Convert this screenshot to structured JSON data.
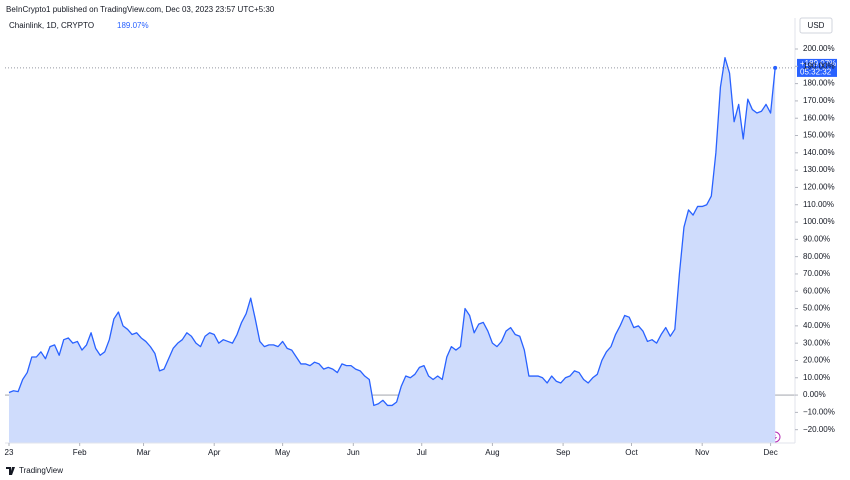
{
  "page_header": "BeInCrypto1 published on TradingView.com, Dec 03, 2023 23:57 UTC+5:30",
  "footer": "TradingView",
  "chart_data": {
    "type": "area",
    "title": "Chainlink, 1D, CRYPTO",
    "header_value": "189.07%",
    "currency": "USD",
    "price_tag": "+189.07%",
    "countdown": "05:32:32",
    "x": [
      0,
      2,
      4,
      6,
      8,
      10,
      12,
      14,
      16,
      18,
      20,
      22,
      24,
      26,
      28,
      30,
      32,
      34,
      36,
      38,
      40,
      42,
      44,
      46,
      48,
      50,
      52,
      54,
      56,
      58,
      60,
      62,
      64,
      66,
      68,
      70,
      72,
      74,
      76,
      78,
      80,
      82,
      84,
      86,
      88,
      90,
      92,
      94,
      96,
      98,
      100,
      102,
      104,
      106,
      108,
      110,
      112,
      114,
      116,
      118,
      120,
      122,
      124,
      126,
      128,
      130,
      132,
      134,
      136,
      138,
      140,
      142,
      144,
      146,
      148,
      150,
      152,
      154,
      156,
      158,
      160,
      162,
      164,
      166,
      168,
      170,
      172,
      174,
      176,
      178,
      180,
      182,
      184,
      186,
      188,
      190,
      192,
      194,
      196,
      198,
      200,
      202,
      204,
      206,
      208,
      210,
      212,
      214,
      216,
      218,
      220,
      222,
      224,
      226,
      228,
      230,
      232,
      234,
      236,
      238,
      240,
      242,
      244,
      246,
      248,
      250,
      252,
      254,
      256,
      258,
      260,
      262,
      264,
      266,
      268,
      270,
      272,
      274,
      276,
      278,
      280,
      282,
      284,
      286,
      288,
      290,
      292,
      294,
      296,
      298,
      300,
      302,
      304,
      306,
      308,
      310,
      312,
      314,
      316,
      318,
      320,
      322,
      324,
      326,
      328,
      330,
      332,
      334,
      336
    ],
    "series": [
      {
        "name": "Chainlink",
        "color": "#2962ff",
        "fill": "#cfdcfc",
        "values": [
          1.5,
          2.5,
          2,
          9,
          13,
          22,
          22,
          25,
          21,
          28,
          29,
          23,
          32,
          33,
          30,
          31,
          26,
          29,
          36,
          27,
          23,
          25,
          32,
          44,
          48,
          40,
          38,
          35,
          36,
          33,
          31,
          28,
          24,
          14,
          15,
          21,
          27,
          30,
          32,
          36,
          34,
          30,
          28,
          34,
          36,
          35,
          30,
          32,
          31,
          30,
          35,
          42,
          47,
          56,
          44,
          31,
          28,
          29,
          29,
          28,
          31,
          27,
          26,
          22,
          18,
          18,
          17,
          19,
          18,
          15,
          16,
          15,
          13,
          18,
          17,
          17,
          15,
          14,
          11,
          9,
          -6,
          -5,
          -3,
          -6,
          -6,
          -4,
          5,
          11,
          10,
          12,
          16,
          17,
          11,
          9,
          11,
          9,
          22,
          28,
          26,
          28,
          50,
          46,
          36,
          41,
          42,
          37,
          30,
          28,
          31,
          37,
          39,
          35,
          34,
          26,
          11,
          11,
          11,
          10,
          7,
          11,
          8,
          7,
          10,
          11,
          14,
          13,
          9,
          7,
          10,
          12,
          20,
          25,
          28,
          35,
          40,
          46,
          45,
          39,
          40,
          37,
          31,
          32,
          30,
          35,
          39,
          34,
          38,
          70,
          97,
          107,
          104,
          109,
          109,
          110,
          115,
          140,
          178,
          195,
          186,
          158,
          168,
          148,
          171,
          165,
          163,
          164,
          168,
          163,
          189.07
        ]
      }
    ],
    "xlim": [
      -1.75,
      344.7
    ],
    "ylim": [
      -27.7,
      205.2
    ],
    "xticks": [
      {
        "value": 0,
        "label": "23"
      },
      {
        "value": 31,
        "label": "Feb"
      },
      {
        "value": 59,
        "label": "Mar"
      },
      {
        "value": 90,
        "label": "Apr"
      },
      {
        "value": 120,
        "label": "May"
      },
      {
        "value": 151,
        "label": "Jun"
      },
      {
        "value": 181,
        "label": "Jul"
      },
      {
        "value": 212,
        "label": "Aug"
      },
      {
        "value": 243,
        "label": "Sep"
      },
      {
        "value": 273,
        "label": "Oct"
      },
      {
        "value": 304,
        "label": "Nov"
      },
      {
        "value": 334,
        "label": "Dec"
      }
    ],
    "yticks": [
      {
        "value": 200,
        "label": "200.00%"
      },
      {
        "value": 190,
        "label": "190.00%"
      },
      {
        "value": 180,
        "label": "180.00%"
      },
      {
        "value": 170,
        "label": "170.00%"
      },
      {
        "value": 160,
        "label": "160.00%"
      },
      {
        "value": 150,
        "label": "150.00%"
      },
      {
        "value": 140,
        "label": "140.00%"
      },
      {
        "value": 130,
        "label": "130.00%"
      },
      {
        "value": 120,
        "label": "120.00%"
      },
      {
        "value": 110,
        "label": "110.00%"
      },
      {
        "value": 100,
        "label": "100.00%"
      },
      {
        "value": 90,
        "label": "90.00%"
      },
      {
        "value": 80,
        "label": "80.00%"
      },
      {
        "value": 70,
        "label": "70.00%"
      },
      {
        "value": 60,
        "label": "60.00%"
      },
      {
        "value": 50,
        "label": "50.00%"
      },
      {
        "value": 40,
        "label": "40.00%"
      },
      {
        "value": 30,
        "label": "30.00%"
      },
      {
        "value": 20,
        "label": "20.00%"
      },
      {
        "value": 10,
        "label": "10.00%"
      },
      {
        "value": 0,
        "label": "0.00%"
      },
      {
        "value": -10,
        "label": "−10.00%"
      },
      {
        "value": -20,
        "label": "−20.00%"
      }
    ],
    "baseline": 0,
    "grid": false
  }
}
